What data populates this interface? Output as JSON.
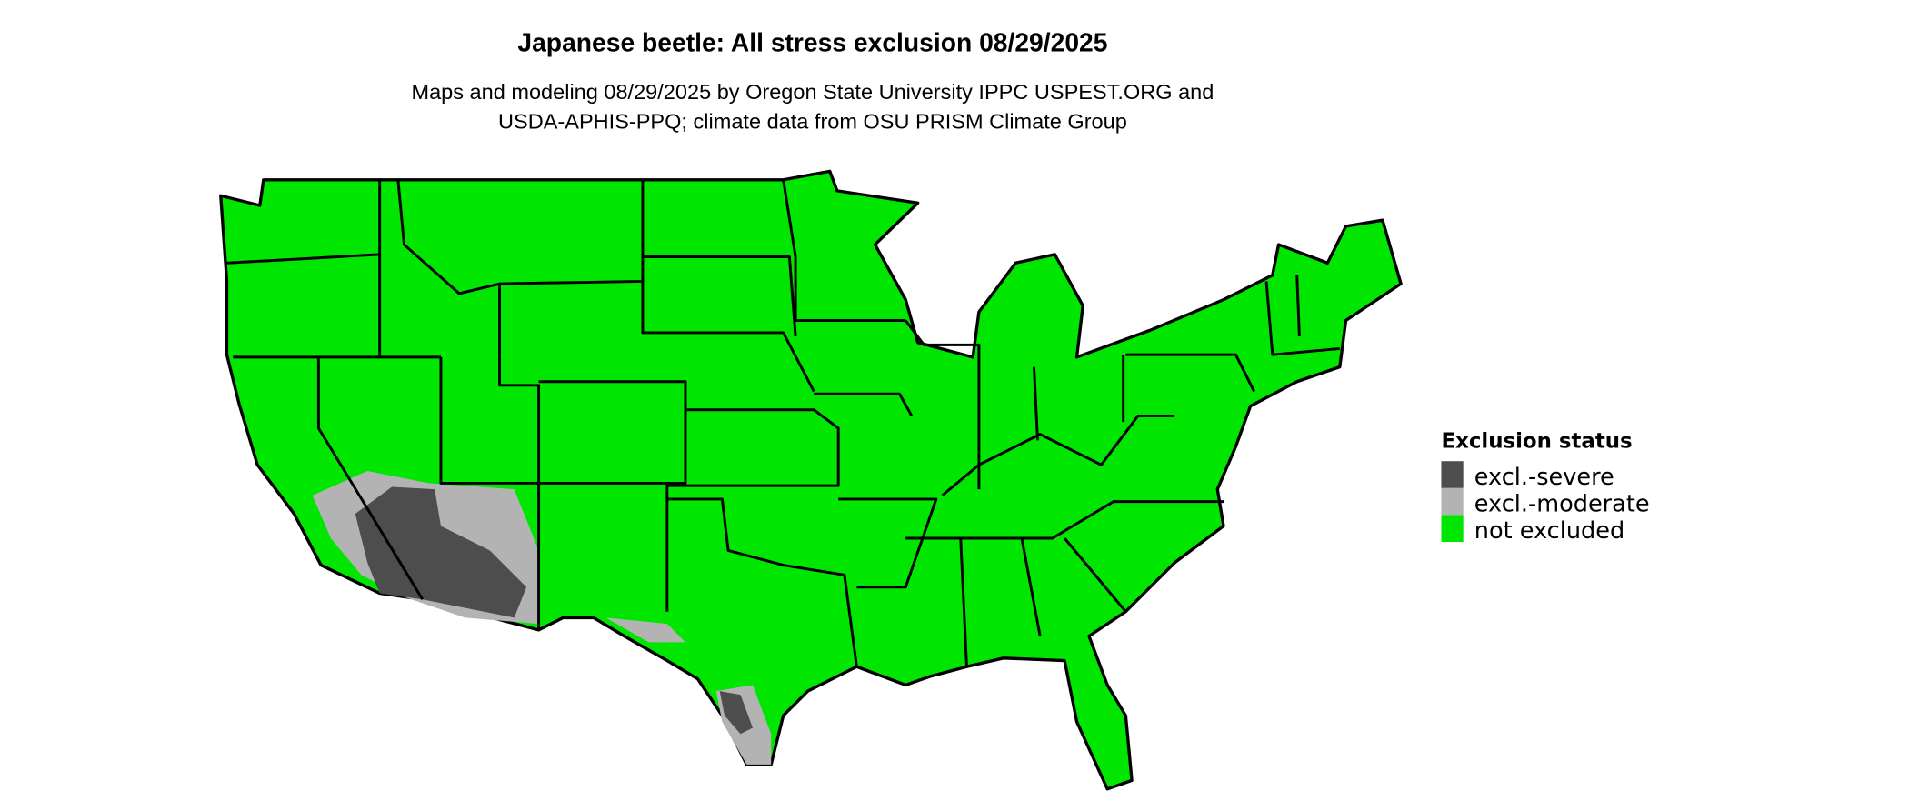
{
  "title": "Japanese beetle: All stress exclusion 08/29/2025",
  "subtitle_lines": [
    "Maps and modeling 08/29/2025 by Oregon State University IPPC USPEST.ORG and",
    "USDA-APHIS-PPQ; climate data from OSU PRISM Climate Group"
  ],
  "legend": {
    "title": "Exclusion status",
    "items": [
      {
        "label": "excl.-severe",
        "color": "#4d4d4d"
      },
      {
        "label": "excl.-moderate",
        "color": "#b3b3b3"
      },
      {
        "label": "not excluded",
        "color": "#00e600"
      }
    ]
  },
  "map": {
    "region": "contiguous United States",
    "base_color": "#00e600",
    "border_color": "#000000"
  }
}
